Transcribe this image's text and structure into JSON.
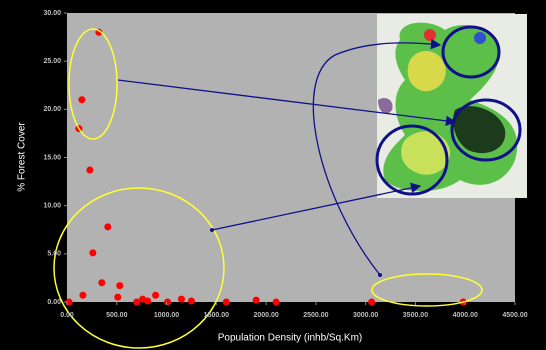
{
  "chart_data": {
    "type": "scatter",
    "x_label": "Population Density (inhb/Sq.Km)",
    "y_label": "% Forest Cover",
    "x": [
      320,
      150,
      120,
      230,
      410,
      260,
      160,
      350,
      510,
      530,
      700,
      760,
      810,
      890,
      1010,
      1150,
      1250,
      1600,
      1900,
      2100,
      3060,
      3980,
      20
    ],
    "values": [
      28,
      21,
      18,
      13.7,
      7.8,
      5.1,
      0.7,
      2,
      0.5,
      1.7,
      0,
      0.3,
      0.1,
      0.7,
      0,
      0.3,
      0.1,
      0,
      0.2,
      0,
      0,
      0,
      0
    ],
    "color": "#ff0000",
    "xlim": [
      0,
      4500
    ],
    "ylim": [
      0,
      30
    ],
    "xticks": [
      {
        "value": 0,
        "label": "0.00"
      },
      {
        "value": 500,
        "label": "500.00"
      },
      {
        "value": 1000,
        "label": "1000.00"
      },
      {
        "value": 1500,
        "label": "1500.00"
      },
      {
        "value": 2000,
        "label": "2000.00"
      },
      {
        "value": 2500,
        "label": "2500.00"
      },
      {
        "value": 3000,
        "label": "3000.00"
      },
      {
        "value": 3500,
        "label": "3500.00"
      },
      {
        "value": 4000,
        "label": "4000.00"
      },
      {
        "value": 4500,
        "label": "4500.00"
      }
    ],
    "yticks": [
      {
        "value": 0,
        "label": "0.00"
      },
      {
        "value": 5,
        "label": "5.00"
      },
      {
        "value": 10,
        "label": "10.00"
      },
      {
        "value": 15,
        "label": "15.00"
      },
      {
        "value": 20,
        "label": "20.00"
      },
      {
        "value": 25,
        "label": "25.00"
      },
      {
        "value": 30,
        "label": "30.00"
      }
    ],
    "grid": false
  }
}
